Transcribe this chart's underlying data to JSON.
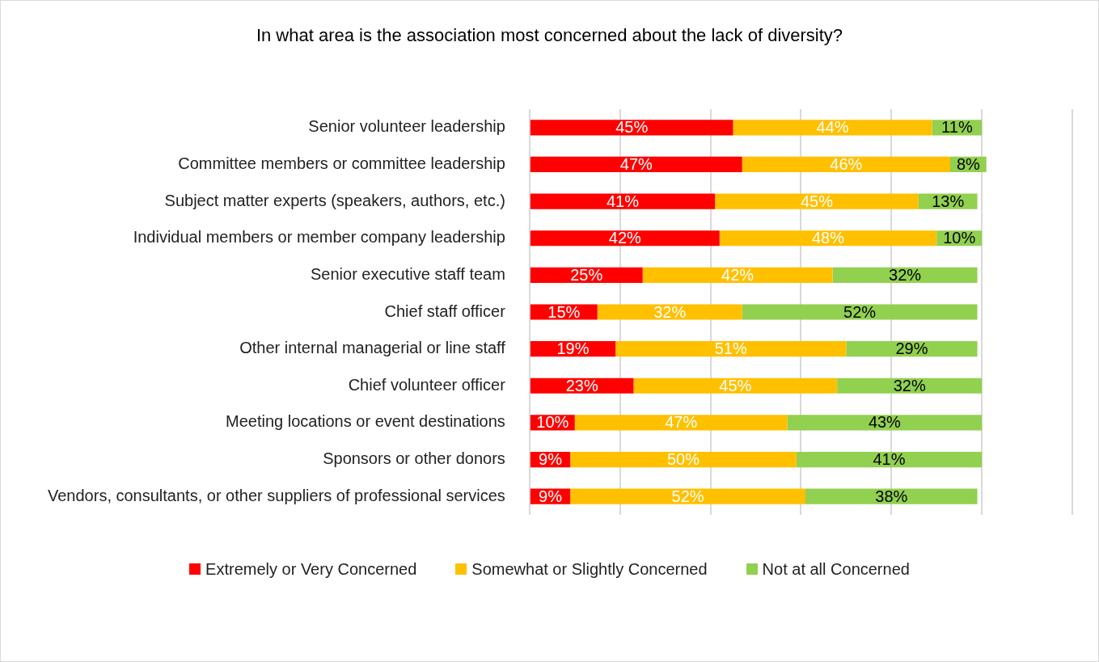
{
  "chart_data": {
    "type": "bar",
    "orientation": "horizontal",
    "stacked": true,
    "title": "In what area is the association most concerned about the lack of diversity?",
    "categories": [
      "Senior volunteer leadership",
      "Committee members or committee leadership",
      "Subject matter experts (speakers, authors, etc.)",
      "Individual members or member company leadership",
      "Senior executive staff team",
      "Chief staff officer",
      "Other internal managerial or line staff",
      "Chief volunteer officer",
      "Meeting locations or event destinations",
      "Sponsors or other donors",
      "Vendors, consultants, or other suppliers of professional services"
    ],
    "series": [
      {
        "name": "Extremely or Very Concerned",
        "color": "#ff0000",
        "values": [
          45,
          47,
          41,
          42,
          25,
          15,
          19,
          23,
          10,
          9,
          9
        ],
        "value_labels": [
          "45%",
          "47%",
          "41%",
          "42%",
          "25%",
          "15%",
          "19%",
          "23%",
          "10%",
          "9%",
          "9%"
        ]
      },
      {
        "name": "Somewhat or Slightly Concerned",
        "color": "#ffc000",
        "values": [
          44,
          46,
          45,
          48,
          42,
          32,
          51,
          45,
          47,
          50,
          52
        ],
        "value_labels": [
          "44%",
          "46%",
          "45%",
          "48%",
          "42%",
          "32%",
          "51%",
          "45%",
          "47%",
          "50%",
          "52%"
        ]
      },
      {
        "name": "Not at all Concerned",
        "color": "#92d050",
        "values": [
          11,
          8,
          13,
          10,
          32,
          52,
          29,
          32,
          43,
          41,
          38
        ],
        "value_labels": [
          "11%",
          "8%",
          "13%",
          "10%",
          "32%",
          "52%",
          "29%",
          "32%",
          "43%",
          "41%",
          "38%"
        ]
      }
    ],
    "tick_labels": "y",
    "grid": "x",
    "legend": "bottom"
  }
}
